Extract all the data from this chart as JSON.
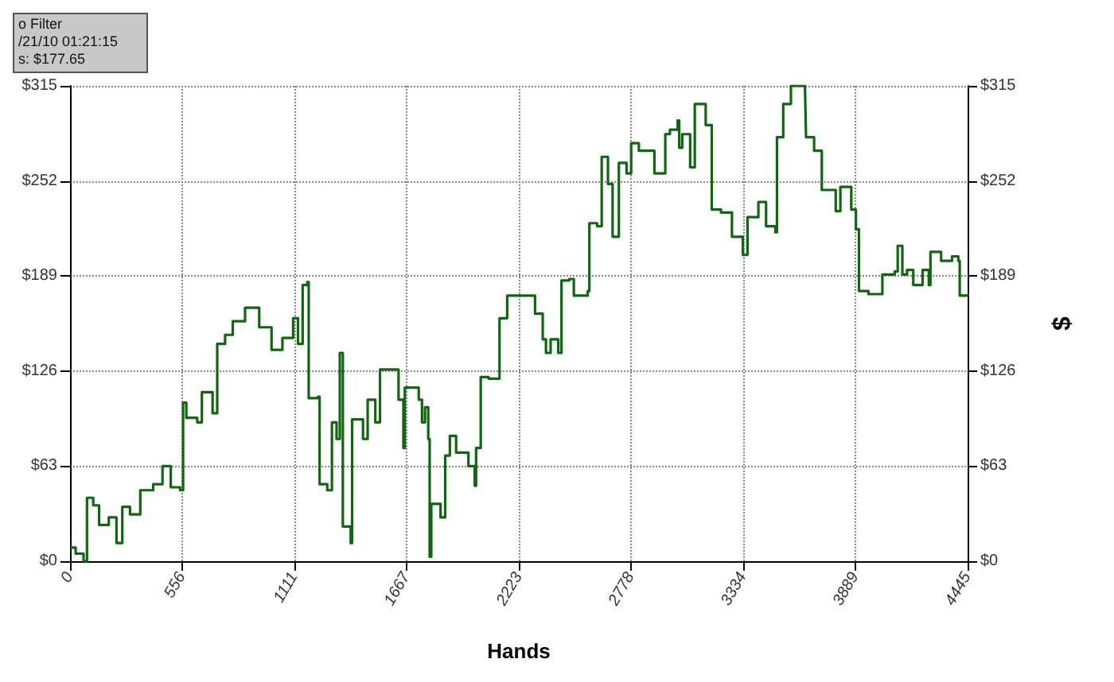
{
  "chart_data": {
    "type": "step",
    "xlabel": "Hands",
    "y2label": "$",
    "annotations": [
      "o Filter",
      "/21/10 01:21:15",
      "s: $177.65"
    ],
    "xlim": [
      0,
      4445
    ],
    "xticks": [
      0,
      556,
      1111,
      1667,
      2223,
      2778,
      3334,
      3889,
      4445
    ],
    "ylim": [
      0,
      315
    ],
    "yticks": [
      {
        "value": 0,
        "label": "$0"
      },
      {
        "value": 63,
        "label": "$63"
      },
      {
        "value": 126,
        "label": "$126"
      },
      {
        "value": 189,
        "label": "$189"
      },
      {
        "value": 252,
        "label": "$252"
      },
      {
        "value": 315,
        "label": "$315"
      }
    ],
    "y2lim": [
      0,
      315
    ],
    "y2ticks": [
      {
        "value": 0,
        "label": "$0"
      },
      {
        "value": 63,
        "label": "$63"
      },
      {
        "value": 126,
        "label": "$126"
      },
      {
        "value": 189,
        "label": "$189"
      },
      {
        "value": 252,
        "label": "$252"
      },
      {
        "value": 315,
        "label": "$315"
      }
    ],
    "grid": true,
    "marker": "none",
    "series": [
      {
        "color": "#116611",
        "x": [
          2,
          28,
          67,
          84,
          115,
          144,
          192,
          230,
          259,
          297,
          348,
          412,
          458,
          499,
          545,
          560,
          576,
          630,
          653,
          706,
          729,
          768,
          806,
          867,
          937,
          998,
          1052,
          1105,
          1129,
          1152,
          1175,
          1182,
          1228,
          1236,
          1274,
          1297,
          1320,
          1336,
          1351,
          1390,
          1397,
          1451,
          1474,
          1512,
          1535,
          1574,
          1627,
          1651,
          1658,
          1727,
          1743,
          1758,
          1774,
          1781,
          1789,
          1835,
          1858,
          1881,
          1912,
          1973,
          2004,
          2011,
          2034,
          2073,
          2127,
          2165,
          2257,
          2303,
          2341,
          2357,
          2380,
          2418,
          2434,
          2472,
          2495,
          2564,
          2572,
          2610,
          2633,
          2664,
          2687,
          2718,
          2756,
          2779,
          2817,
          2894,
          2948,
          2971,
          3009,
          3017,
          3032,
          3071,
          3094,
          3148,
          3178,
          3224,
          3278,
          3332,
          3355,
          3409,
          3447,
          3493,
          3501,
          3532,
          3570,
          3640,
          3645,
          3685,
          3723,
          3792,
          3815,
          3869,
          3892,
          3907,
          3954,
          4023,
          4084,
          4099,
          4122,
          4145,
          4176,
          4222,
          4253,
          4261,
          4314,
          4368,
          4399,
          4406,
          4445
        ],
        "values": [
          9,
          5,
          0,
          42,
          37,
          24,
          29,
          12,
          36,
          31,
          47,
          51,
          63,
          49,
          47,
          105,
          95,
          92,
          112,
          98,
          144,
          150,
          159,
          168,
          155,
          140,
          148,
          161,
          144,
          183,
          185,
          108,
          109,
          51,
          47,
          92,
          81,
          138,
          23,
          12,
          94,
          81,
          107,
          92,
          127,
          127,
          107,
          75,
          115,
          107,
          92,
          102,
          81,
          3,
          38,
          29,
          70,
          83,
          72,
          63,
          50,
          75,
          122,
          121,
          161,
          176,
          176,
          164,
          147,
          138,
          147,
          138,
          186,
          187,
          176,
          179,
          224,
          222,
          268,
          250,
          215,
          264,
          257,
          277,
          272,
          257,
          283,
          286,
          292,
          274,
          283,
          261,
          303,
          289,
          233,
          231,
          215,
          203,
          228,
          238,
          222,
          218,
          281,
          303,
          315,
          312,
          281,
          272,
          246,
          232,
          248,
          233,
          220,
          179,
          177,
          190,
          192,
          209,
          190,
          193,
          183,
          193,
          183,
          205,
          199,
          202,
          199,
          176,
          177
        ]
      }
    ]
  }
}
